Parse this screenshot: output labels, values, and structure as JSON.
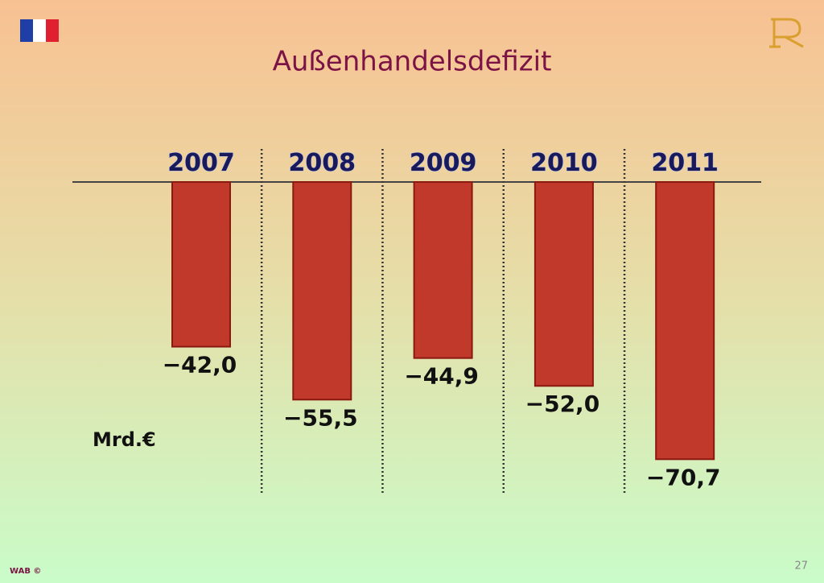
{
  "chart_data": {
    "type": "bar",
    "title": "Außenhandelsdefizit",
    "unit": "Mrd.€",
    "categories": [
      "2007",
      "2008",
      "2009",
      "2010",
      "2011"
    ],
    "values": [
      -42.0,
      -55.5,
      -44.9,
      -52.0,
      -70.7
    ],
    "value_labels": [
      "−42,0",
      "−55,5",
      "−44,9",
      "−52,0",
      "−70,7"
    ],
    "color": "#c0392b"
  },
  "footer": {
    "credit": "WAB ©",
    "page": "27"
  }
}
